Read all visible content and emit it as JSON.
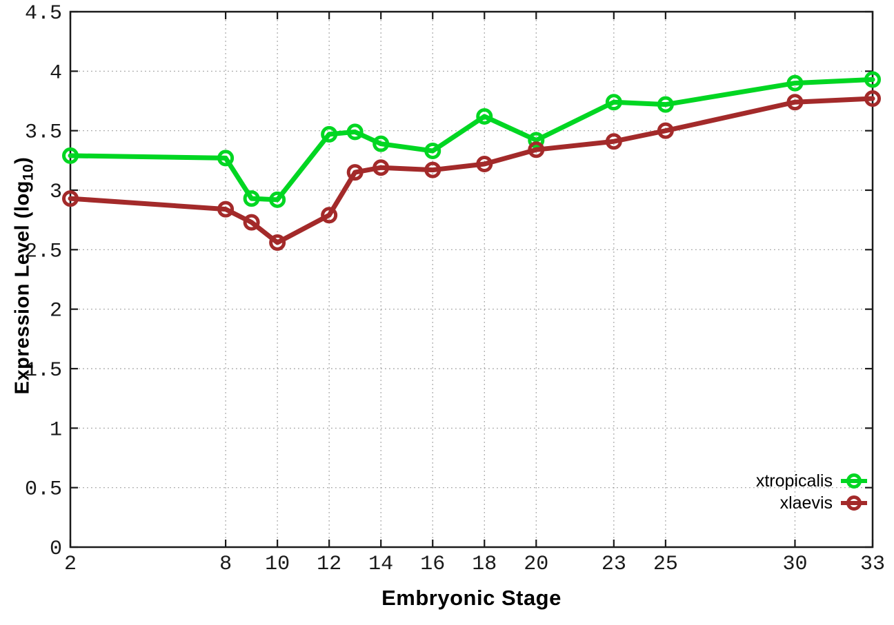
{
  "chart_data": {
    "type": "line",
    "title": "",
    "xlabel": "Embryonic Stage",
    "ylabel": "Expression Level (log10)",
    "ylabel_parts": {
      "main": "Expression Level (log",
      "sub": "10",
      "end": ")"
    },
    "x": [
      2,
      8,
      9,
      10,
      12,
      13,
      14,
      16,
      18,
      20,
      23,
      25,
      30,
      33
    ],
    "series": [
      {
        "name": "xtropicalis",
        "color": "#00d622",
        "values": [
          3.29,
          3.27,
          2.93,
          2.92,
          3.47,
          3.49,
          3.39,
          3.33,
          3.62,
          3.42,
          3.74,
          3.72,
          3.9,
          3.93
        ]
      },
      {
        "name": "xlaevis",
        "color": "#a32a2a",
        "values": [
          2.93,
          2.84,
          2.73,
          2.56,
          2.79,
          3.15,
          3.19,
          3.17,
          3.22,
          3.34,
          3.41,
          3.5,
          3.74,
          3.77
        ]
      }
    ],
    "xlim": [
      2,
      33
    ],
    "ylim": [
      0,
      4.5
    ],
    "xticks": [
      2,
      8,
      10,
      12,
      14,
      16,
      18,
      20,
      23,
      25,
      30,
      33
    ],
    "xtick_labels": [
      "2",
      "8",
      "10",
      "12",
      "14",
      "16",
      "18",
      "20",
      "23",
      "25",
      "30",
      "33"
    ],
    "yticks": [
      0,
      0.5,
      1,
      1.5,
      2,
      2.5,
      3,
      3.5,
      4,
      4.5
    ],
    "ytick_labels": [
      "0",
      "0.5",
      "1",
      "1.5",
      "2",
      "2.5",
      "3",
      "3.5",
      "4",
      "4.5"
    ],
    "grid": true,
    "grid_style": "dotted",
    "legend_position": "bottom-right",
    "marker": "open-circle",
    "frame_color": "#1a1a1a",
    "grid_color": "#9a9a9a",
    "tick_label_color": "#1a1a1a"
  }
}
